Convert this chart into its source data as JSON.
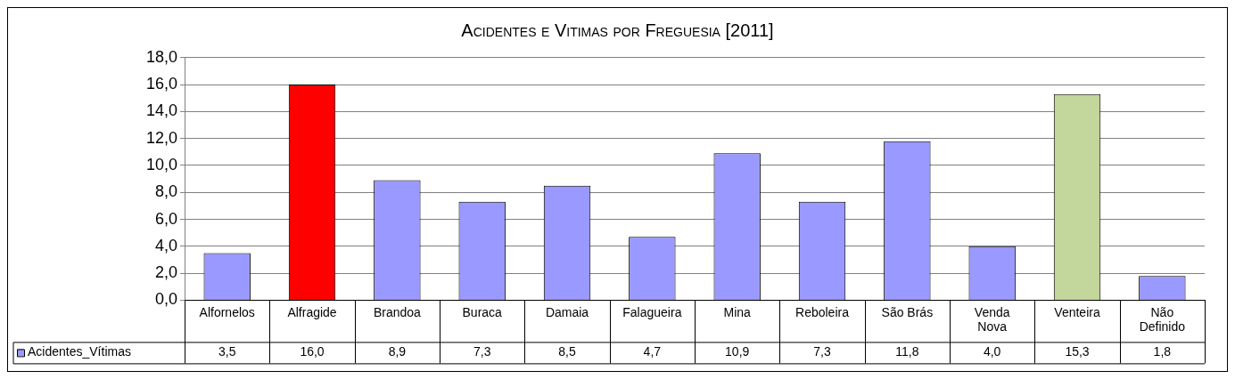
{
  "chart_data": {
    "type": "bar",
    "title": "Acidentes e Vitimas por Freguesia [2011]",
    "categories": [
      "Alfornelos",
      "Alfragide",
      "Brandoa",
      "Buraca",
      "Damaia",
      "Falagueira",
      "Mina",
      "Reboleira",
      "São Brás",
      "Venda Nova",
      "Venteira",
      "Não Definido"
    ],
    "series": [
      {
        "name": "Acidentes_Vítimas",
        "color": "#9999ff",
        "colors": [
          "#9999ff",
          "#ff0000",
          "#9999ff",
          "#9999ff",
          "#9999ff",
          "#9999ff",
          "#9999ff",
          "#9999ff",
          "#9999ff",
          "#9999ff",
          "#c3d69b",
          "#9999ff"
        ],
        "values": [
          3.5,
          16.0,
          8.9,
          7.3,
          8.5,
          4.7,
          10.9,
          7.3,
          11.8,
          4.0,
          15.3,
          1.8
        ],
        "value_labels": [
          "3,5",
          "16,0",
          "8,9",
          "7,3",
          "8,5",
          "4,7",
          "10,9",
          "7,3",
          "11,8",
          "4,0",
          "15,3",
          "1,8"
        ]
      }
    ],
    "ylim": [
      0,
      18
    ],
    "yticks": [
      {
        "value": 0,
        "label": "0,0"
      },
      {
        "value": 2,
        "label": "2,0"
      },
      {
        "value": 4,
        "label": "4,0"
      },
      {
        "value": 6,
        "label": "6,0"
      },
      {
        "value": 8,
        "label": "8,0"
      },
      {
        "value": 10,
        "label": "10,0"
      },
      {
        "value": 12,
        "label": "12,0"
      },
      {
        "value": 14,
        "label": "14,0"
      },
      {
        "value": 16,
        "label": "16,0"
      },
      {
        "value": 18,
        "label": "18,0"
      }
    ],
    "grid": "y",
    "legend": "bottom left"
  }
}
